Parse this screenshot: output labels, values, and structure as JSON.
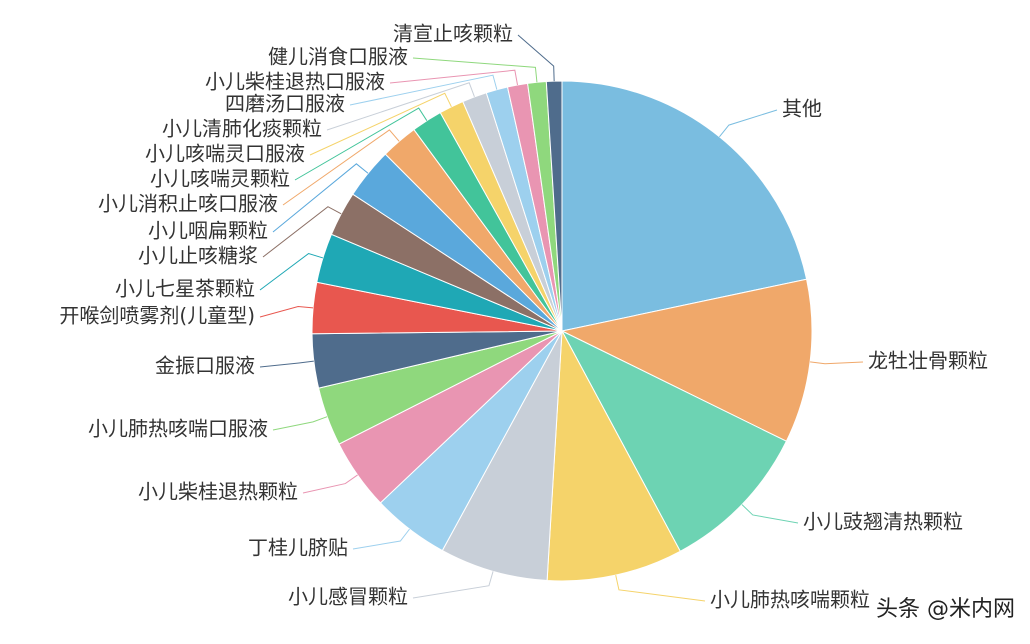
{
  "chart_data": {
    "type": "pie",
    "categories": [
      "其他",
      "龙牡壮骨颗粒",
      "小儿豉翘清热颗粒",
      "小儿肺热咳喘颗粒",
      "小儿感冒颗粒",
      "丁桂儿脐贴",
      "小儿柴桂退热颗粒",
      "小儿肺热咳喘口服液",
      "金振口服液",
      "开喉剑喷雾剂(儿童型)",
      "小儿七星茶颗粒",
      "小儿止咳糖浆",
      "小儿咽扁颗粒",
      "小儿消积止咳口服液",
      "小儿咳喘灵颗粒",
      "小儿咳喘灵口服液",
      "小儿清肺化痰颗粒",
      "四磨汤口服液",
      "小儿柴桂退热口服液",
      "健儿消食口服液",
      "清宣止咳颗粒"
    ],
    "values": [
      21.7,
      10.6,
      9.9,
      8.8,
      7,
      5,
      4.6,
      3.8,
      3.5,
      3.3,
      3.2,
      2.9,
      3.3,
      2.4,
      2,
      1.6,
      1.6,
      1.4,
      1.3,
      1.2,
      1
    ],
    "colors": [
      "#7abde0",
      "#f0a86a",
      "#6dd3b3",
      "#f5d36a",
      "#c8cfd8",
      "#9dd0ee",
      "#e995b2",
      "#8fd87d",
      "#4f6c8c",
      "#e8574f",
      "#1fa8b5",
      "#8c7066",
      "#5aa8dc",
      "#f0a86a",
      "#42c49a",
      "#f5d36a",
      "#c8cfd8",
      "#9dd0ee",
      "#e995b2",
      "#8fd87d",
      "#4f6c8c"
    ],
    "watermark": "头条 @米内网"
  }
}
